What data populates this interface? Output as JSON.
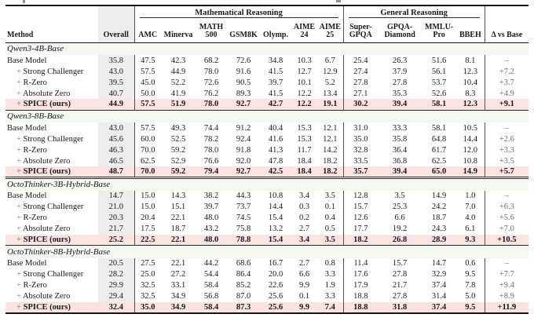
{
  "colors": {
    "highlight_pink": "#fbe3e1",
    "overall_gray": "#ededed",
    "group_title_tint": "#f3f8f0",
    "delta_muted": "#6e6e6e"
  },
  "table": {
    "method_header": "Method",
    "overall_header": "Overall",
    "delta_header": "Δ vs Base",
    "col_groups": [
      {
        "label": "Mathematical Reasoning"
      },
      {
        "label": "General Reasoning"
      }
    ],
    "math_columns": [
      [
        "AMC"
      ],
      [
        "Minerva"
      ],
      [
        "MATH",
        "500"
      ],
      [
        "GSM8K"
      ],
      [
        "Olymp."
      ],
      [
        "AIME",
        "24"
      ],
      [
        "AIME",
        "25"
      ]
    ],
    "general_columns": [
      [
        "Super-",
        "GPQA"
      ],
      [
        "GPQA-",
        "Diamond"
      ],
      [
        "MMLU-",
        "Pro"
      ],
      [
        "BBEH"
      ]
    ],
    "groups": [
      {
        "title": "Qwen3-4B-Base",
        "rows": [
          {
            "prefix": "",
            "method": "Base Model",
            "highlight": false,
            "overall": "35.8",
            "math": [
              "47.5",
              "42.3",
              "68.2",
              "72.6",
              "34.8",
              "10.3",
              "6.7"
            ],
            "general": [
              "25.4",
              "26.3",
              "51.6",
              "8.1"
            ],
            "delta": "–"
          },
          {
            "prefix": "+",
            "method": "Strong Challenger",
            "highlight": false,
            "overall": "43.0",
            "math": [
              "57.5",
              "44.9",
              "78.0",
              "91.6",
              "41.5",
              "12.7",
              "12.9"
            ],
            "general": [
              "27.4",
              "37.9",
              "56.1",
              "12.3"
            ],
            "delta": "+7.2"
          },
          {
            "prefix": "+",
            "method": "R-Zero",
            "highlight": false,
            "overall": "39.5",
            "math": [
              "45.0",
              "52.2",
              "72.6",
              "90.5",
              "39.7",
              "10.1",
              "5.2"
            ],
            "general": [
              "27.8",
              "27.8",
              "53.7",
              "10.4"
            ],
            "delta": "+3.7"
          },
          {
            "prefix": "+",
            "method": "Absolute Zero",
            "highlight": false,
            "overall": "40.7",
            "math": [
              "50.0",
              "41.9",
              "76.2",
              "89.3",
              "41.5",
              "12.2",
              "13.4"
            ],
            "general": [
              "27.1",
              "35.3",
              "52.6",
              "8.3"
            ],
            "delta": "+4.9"
          },
          {
            "prefix": "+",
            "method": "SPICE (ours)",
            "highlight": true,
            "overall": "44.9",
            "math": [
              "57.5",
              "51.9",
              "78.0",
              "92.7",
              "42.7",
              "12.2",
              "19.1"
            ],
            "general": [
              "30.2",
              "39.4",
              "58.1",
              "12.3"
            ],
            "delta": "+9.1"
          }
        ]
      },
      {
        "title": "Qwen3-8B-Base",
        "rows": [
          {
            "prefix": "",
            "method": "Base Model",
            "highlight": false,
            "overall": "43.0",
            "math": [
              "57.5",
              "49.3",
              "74.4",
              "91.2",
              "40.4",
              "15.3",
              "12.1"
            ],
            "general": [
              "31.0",
              "33.3",
              "58.1",
              "10.5"
            ],
            "delta": "–"
          },
          {
            "prefix": "+",
            "method": "Strong Challenger",
            "highlight": false,
            "overall": "45.6",
            "math": [
              "60.0",
              "52.5",
              "78.2",
              "92.4",
              "41.6",
              "15.3",
              "12.1"
            ],
            "general": [
              "35.0",
              "35.8",
              "64.8",
              "14.4"
            ],
            "delta": "+2.6"
          },
          {
            "prefix": "+",
            "method": "R-Zero",
            "highlight": false,
            "overall": "46.3",
            "math": [
              "70.0",
              "59.2",
              "78.0",
              "91.8",
              "41.3",
              "11.7",
              "14.2"
            ],
            "general": [
              "32.8",
              "36.4",
              "61.7",
              "12.0"
            ],
            "delta": "+3.3"
          },
          {
            "prefix": "+",
            "method": "Absolute Zero",
            "highlight": false,
            "overall": "46.5",
            "math": [
              "62.5",
              "52.9",
              "76.6",
              "92.0",
              "47.8",
              "18.4",
              "18.2"
            ],
            "general": [
              "33.5",
              "36.8",
              "62.5",
              "10.8"
            ],
            "delta": "+3.5"
          },
          {
            "prefix": "+",
            "method": "SPICE (ours)",
            "highlight": true,
            "overall": "48.7",
            "math": [
              "70.0",
              "59.2",
              "79.4",
              "92.7",
              "42.5",
              "18.4",
              "18.2"
            ],
            "general": [
              "35.7",
              "39.4",
              "65.0",
              "14.9"
            ],
            "delta": "+5.7"
          }
        ]
      },
      {
        "title": "OctoThinker-3B-Hybrid-Base",
        "rows": [
          {
            "prefix": "",
            "method": "Base Model",
            "highlight": false,
            "overall": "14.7",
            "math": [
              "15.0",
              "14.3",
              "38.2",
              "44.3",
              "10.8",
              "3.4",
              "3.5"
            ],
            "general": [
              "12.8",
              "3.5",
              "14.9",
              "1.0"
            ],
            "delta": "–"
          },
          {
            "prefix": "+",
            "method": "Strong Challenger",
            "highlight": false,
            "overall": "21.0",
            "math": [
              "15.0",
              "15.1",
              "39.7",
              "73.7",
              "14.4",
              "0.3",
              "0.1"
            ],
            "general": [
              "15.7",
              "25.3",
              "24.2",
              "7.0"
            ],
            "delta": "+6.3"
          },
          {
            "prefix": "+",
            "method": "R-Zero",
            "highlight": false,
            "overall": "20.3",
            "math": [
              "20.4",
              "22.1",
              "48.0",
              "74.5",
              "15.4",
              "0.2",
              "0.4"
            ],
            "general": [
              "12.6",
              "6.6",
              "18.7",
              "4.0"
            ],
            "delta": "+5.6"
          },
          {
            "prefix": "+",
            "method": "Absolute Zero",
            "highlight": false,
            "overall": "21.7",
            "math": [
              "17.5",
              "18.7",
              "43.2",
              "75.8",
              "13.2",
              "2.7",
              "0.5"
            ],
            "general": [
              "17.7",
              "19.2",
              "24.3",
              "6.1"
            ],
            "delta": "+7.0"
          },
          {
            "prefix": "+",
            "method": "SPICE (ours)",
            "highlight": true,
            "overall": "25.2",
            "math": [
              "22.5",
              "22.1",
              "48.0",
              "78.8",
              "15.4",
              "3.4",
              "3.5"
            ],
            "general": [
              "18.2",
              "26.8",
              "28.9",
              "9.3"
            ],
            "delta": "+10.5"
          }
        ]
      },
      {
        "title": "OctoThinker-8B-Hybrid-Base",
        "rows": [
          {
            "prefix": "",
            "method": "Base Model",
            "highlight": false,
            "overall": "20.5",
            "math": [
              "27.5",
              "22.1",
              "44.2",
              "68.6",
              "16.7",
              "2.7",
              "0.8"
            ],
            "general": [
              "11.4",
              "15.7",
              "14.7",
              "0.6"
            ],
            "delta": "–"
          },
          {
            "prefix": "+",
            "method": "Strong Challenger",
            "highlight": false,
            "overall": "28.2",
            "math": [
              "25.0",
              "27.2",
              "54.4",
              "86.4",
              "20.0",
              "6.6",
              "3.3"
            ],
            "general": [
              "17.6",
              "27.8",
              "32.9",
              "9.5"
            ],
            "delta": "+7.7"
          },
          {
            "prefix": "+",
            "method": "R-Zero",
            "highlight": false,
            "overall": "29.9",
            "math": [
              "32.5",
              "33.1",
              "58.4",
              "85.2",
              "22.6",
              "9.9",
              "1.9"
            ],
            "general": [
              "17.9",
              "21.7",
              "37.4",
              "7.8"
            ],
            "delta": "+9.4"
          },
          {
            "prefix": "+",
            "method": "Absolute Zero",
            "highlight": false,
            "overall": "29.4",
            "math": [
              "32.5",
              "34.9",
              "56.8",
              "87.0",
              "25.6",
              "0.1",
              "3.3"
            ],
            "general": [
              "18.8",
              "27.8",
              "31.4",
              "5.0"
            ],
            "delta": "+8.9"
          },
          {
            "prefix": "+",
            "method": "SPICE (ours)",
            "highlight": true,
            "overall": "32.4",
            "math": [
              "35.0",
              "34.9",
              "58.4",
              "87.3",
              "25.6",
              "9.9",
              "7.4"
            ],
            "general": [
              "18.8",
              "31.8",
              "37.4",
              "9.5"
            ],
            "delta": "+11.9"
          }
        ]
      }
    ]
  }
}
